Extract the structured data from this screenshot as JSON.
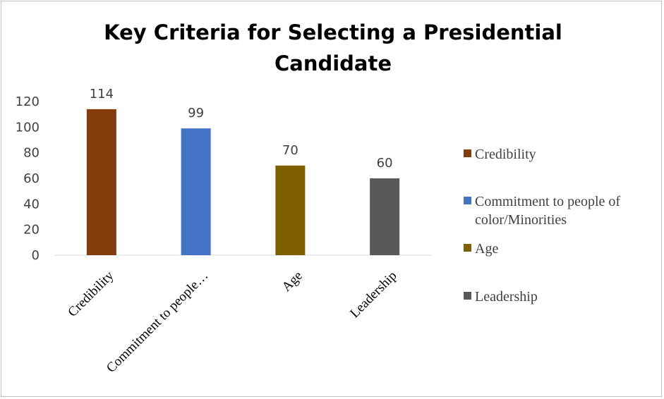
{
  "chart_data": {
    "type": "bar",
    "title": "Key Criteria for Selecting a Presidential Candidate",
    "title_lines": [
      "Key Criteria for Selecting a Presidential",
      "Candidate"
    ],
    "categories": [
      "Credibility",
      "Commitment to people of color/Minorities",
      "Age",
      "Leadership"
    ],
    "category_axis_labels": [
      "Credibility",
      "Commitment to people…",
      "Age",
      "Leadership"
    ],
    "legend_labels": [
      [
        "Credibility"
      ],
      [
        "Commitment to people of",
        "color/Minorities"
      ],
      [
        "Age"
      ],
      [
        "Leadership"
      ]
    ],
    "values": [
      114,
      99,
      70,
      60
    ],
    "colors": [
      "#843c0c",
      "#4472c4",
      "#7f6000",
      "#595959"
    ],
    "ylim": [
      0,
      120
    ],
    "yticks": [
      0,
      20,
      40,
      60,
      80,
      100,
      120
    ],
    "grid": false,
    "legend_position": "right",
    "xlabel": "",
    "ylabel": ""
  }
}
